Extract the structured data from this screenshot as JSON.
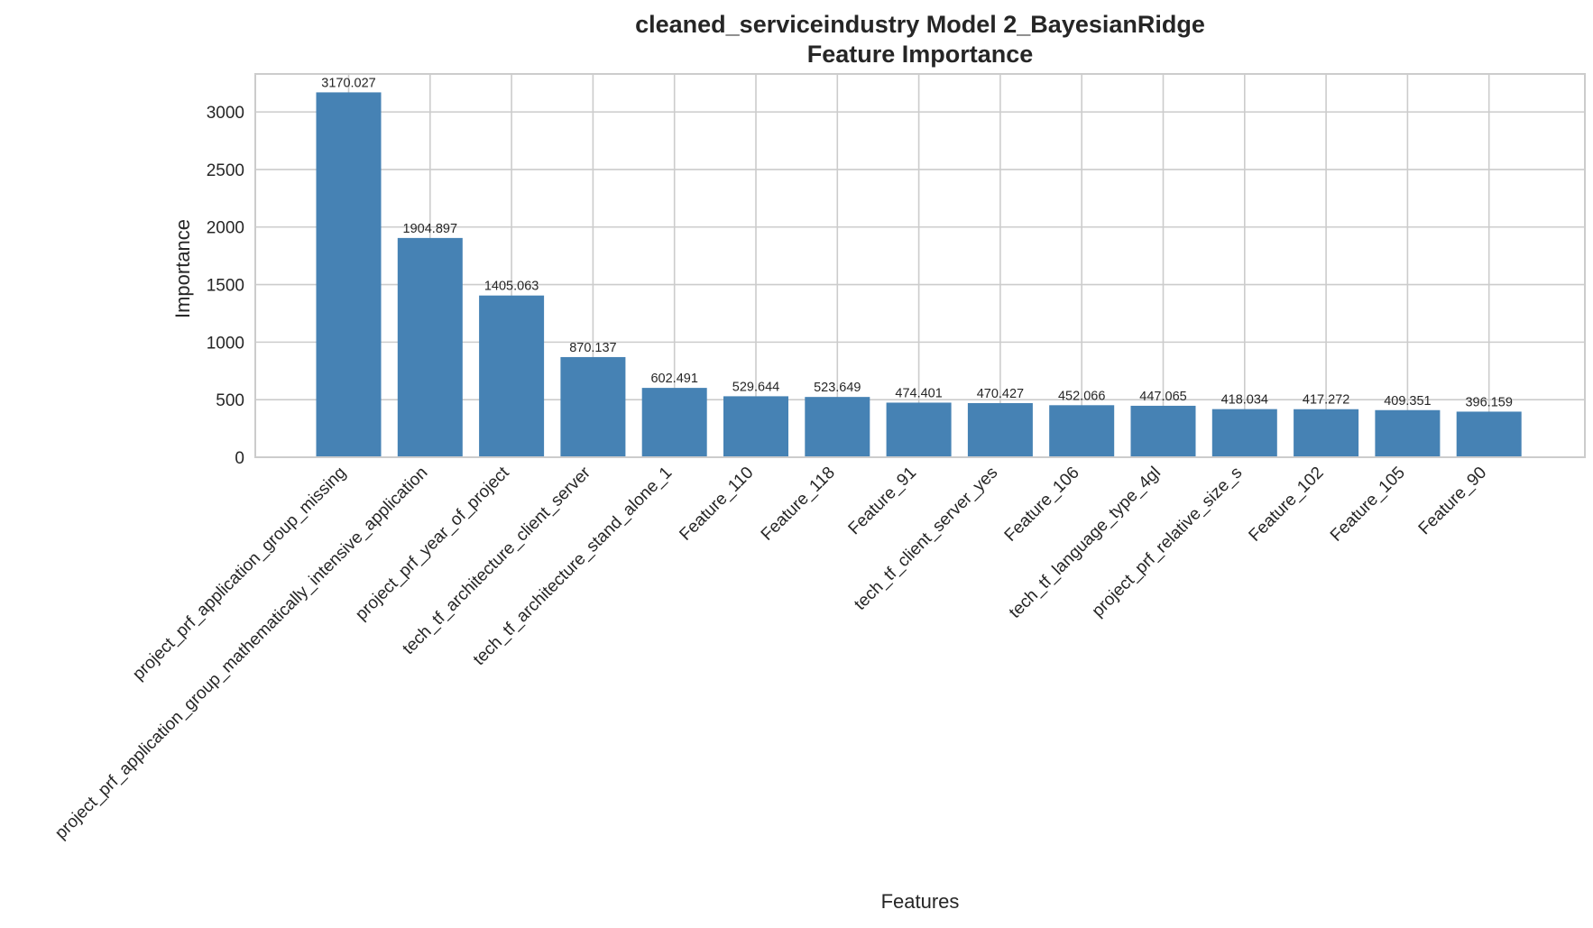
{
  "chart_data": {
    "type": "bar",
    "title": [
      "cleaned_serviceindustry Model 2_BayesianRidge",
      "Feature Importance"
    ],
    "xlabel": "Features",
    "ylabel": "Importance",
    "ylim": [
      0,
      3330
    ],
    "yticks": [
      0,
      500,
      1000,
      1500,
      2000,
      2500,
      3000
    ],
    "grid": true,
    "bar_color": "#4682b4",
    "categories": [
      "project_prf_application_group_missing",
      "project_prf_application_group_mathematically_intensive_application",
      "project_prf_year_of_project",
      "tech_tf_architecture_client_server",
      "tech_tf_architecture_stand_alone_1",
      "Feature_110",
      "Feature_118",
      "Feature_91",
      "tech_tf_client_server_yes",
      "Feature_106",
      "tech_tf_language_type_4gl",
      "project_prf_relative_size_s",
      "Feature_102",
      "Feature_105",
      "Feature_90"
    ],
    "values": [
      3170.027,
      1904.897,
      1405.063,
      870.137,
      602.491,
      529.644,
      523.649,
      474.401,
      470.427,
      452.066,
      447.065,
      418.034,
      417.272,
      409.351,
      396.159
    ],
    "value_labels": [
      "3170.027",
      "1904.897",
      "1405.063",
      "870.137",
      "602.491",
      "529.644",
      "523.649",
      "474.401",
      "470.427",
      "452.066",
      "447.065",
      "418.034",
      "417.272",
      "409.351",
      "396.159"
    ]
  }
}
